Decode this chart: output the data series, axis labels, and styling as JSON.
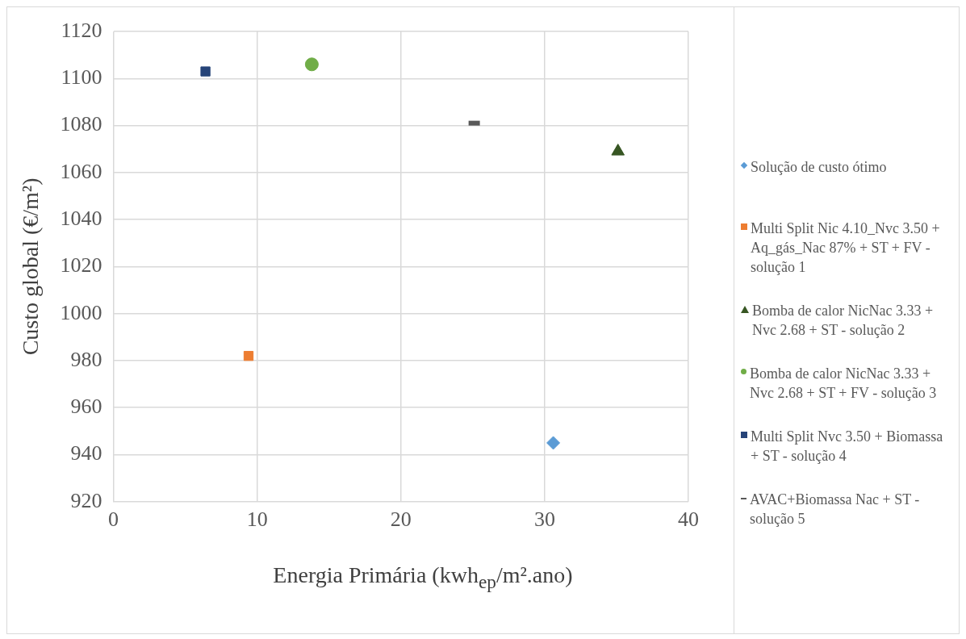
{
  "chart_data": {
    "type": "scatter",
    "xlabel": "Energia Primária (kwh$_{ep}$/m².ano)",
    "ylabel": "Custo global (€/m²)",
    "xlim": [
      0,
      40
    ],
    "xticks": [
      0,
      10,
      20,
      30,
      40
    ],
    "ylim": [
      920,
      1120
    ],
    "yticks": [
      920,
      940,
      960,
      980,
      1000,
      1020,
      1040,
      1060,
      1080,
      1100,
      1120
    ],
    "grid": true,
    "legend": "right",
    "series": [
      {
        "name": "Solução de custo ótimo",
        "color": "#5b9bd5",
        "marker": "diamond",
        "x": [
          30.6
        ],
        "values": [
          945
        ]
      },
      {
        "name": "Multi Split Nic 4.10_Nvc 3.50 + Aq_gás_Nac 87% + ST + FV - solução 1",
        "color": "#ed7d31",
        "marker": "square",
        "x": [
          9.4
        ],
        "values": [
          982
        ]
      },
      {
        "name": "Bomba de calor NicNac 3.33 + Nvc 2.68 + ST - solução 2",
        "color": "#375623",
        "marker": "triangle",
        "x": [
          35.1
        ],
        "values": [
          1069
        ]
      },
      {
        "name": "Bomba de calor NicNac 3.33 + Nvc 2.68 + ST + FV - solução 3",
        "color": "#70ad47",
        "marker": "circle",
        "x": [
          13.8
        ],
        "values": [
          1106
        ]
      },
      {
        "name": "Multi Split Nvc 3.50 + Biomassa + ST - solução 4",
        "color": "#264478",
        "marker": "square",
        "x": [
          6.4
        ],
        "values": [
          1103
        ]
      },
      {
        "name": "AVAC+Biomassa Nac + ST - solução 5",
        "color": "#595959",
        "x": [
          25.1
        ],
        "values": [
          1081
        ]
      }
    ]
  }
}
